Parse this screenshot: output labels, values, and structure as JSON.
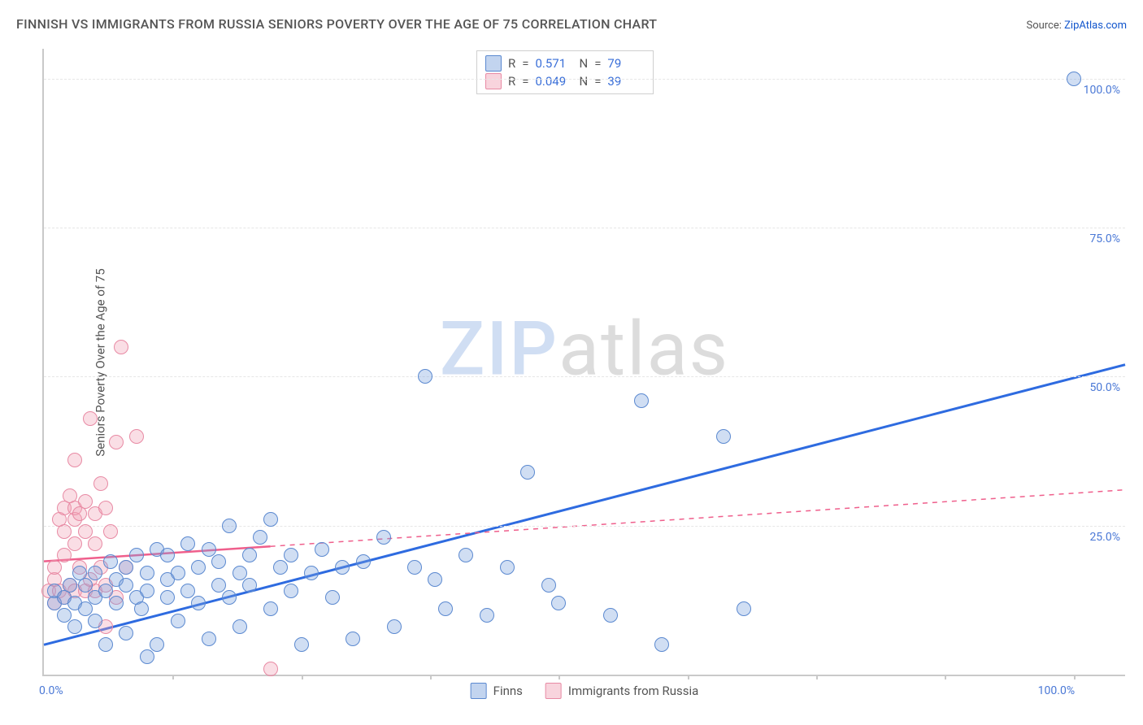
{
  "title": "FINNISH VS IMMIGRANTS FROM RUSSIA SENIORS POVERTY OVER THE AGE OF 75 CORRELATION CHART",
  "source_prefix": "Source: ",
  "source_name": "ZipAtlas.com",
  "ylabel": "Seniors Poverty Over the Age of 75",
  "watermark": {
    "zip": "ZIP",
    "atlas": "atlas"
  },
  "chart": {
    "type": "scatter",
    "xlim": [
      0,
      105
    ],
    "ylim": [
      0,
      105
    ],
    "yticks": [
      {
        "v": 25,
        "label": "25.0%"
      },
      {
        "v": 50,
        "label": "50.0%"
      },
      {
        "v": 75,
        "label": "75.0%"
      },
      {
        "v": 100,
        "label": "100.0%"
      }
    ],
    "xticks_labeled": [
      {
        "v": 0,
        "label": "0.0%"
      },
      {
        "v": 100,
        "label": "100.0%"
      }
    ],
    "xtick_step_minor": 12.5,
    "background_color": "#ffffff",
    "grid_color": "#e6e6e6",
    "axis_color": "#c9c9c9",
    "series": {
      "finns": {
        "label": "Finns",
        "color_fill": "rgba(120,160,220,0.35)",
        "color_stroke": "#5b89d0",
        "marker_size": 16,
        "R": "0.571",
        "N": "79",
        "trend": {
          "x1": 0,
          "y1": 5,
          "x2": 105,
          "y2": 52,
          "stroke": "#2e6be0",
          "width": 3,
          "dash_after_x": null
        },
        "points": [
          [
            1,
            12
          ],
          [
            1,
            14
          ],
          [
            2,
            10
          ],
          [
            2,
            13
          ],
          [
            2.5,
            15
          ],
          [
            3,
            8
          ],
          [
            3,
            12
          ],
          [
            3.5,
            17
          ],
          [
            4,
            11
          ],
          [
            4,
            15
          ],
          [
            5,
            9
          ],
          [
            5,
            13
          ],
          [
            5,
            17
          ],
          [
            6,
            5
          ],
          [
            6,
            14
          ],
          [
            6.5,
            19
          ],
          [
            7,
            12
          ],
          [
            7,
            16
          ],
          [
            8,
            7
          ],
          [
            8,
            15
          ],
          [
            8,
            18
          ],
          [
            9,
            13
          ],
          [
            9,
            20
          ],
          [
            9.5,
            11
          ],
          [
            10,
            3
          ],
          [
            10,
            14
          ],
          [
            10,
            17
          ],
          [
            11,
            21
          ],
          [
            11,
            5
          ],
          [
            12,
            13
          ],
          [
            12,
            16
          ],
          [
            12,
            20
          ],
          [
            13,
            9
          ],
          [
            13,
            17
          ],
          [
            14,
            14
          ],
          [
            14,
            22
          ],
          [
            15,
            12
          ],
          [
            15,
            18
          ],
          [
            16,
            21
          ],
          [
            16,
            6
          ],
          [
            17,
            15
          ],
          [
            17,
            19
          ],
          [
            18,
            13
          ],
          [
            18,
            25
          ],
          [
            19,
            17
          ],
          [
            19,
            8
          ],
          [
            20,
            15
          ],
          [
            20,
            20
          ],
          [
            21,
            23
          ],
          [
            22,
            11
          ],
          [
            22,
            26
          ],
          [
            23,
            18
          ],
          [
            24,
            14
          ],
          [
            24,
            20
          ],
          [
            25,
            5
          ],
          [
            26,
            17
          ],
          [
            27,
            21
          ],
          [
            28,
            13
          ],
          [
            29,
            18
          ],
          [
            30,
            6
          ],
          [
            31,
            19
          ],
          [
            33,
            23
          ],
          [
            34,
            8
          ],
          [
            36,
            18
          ],
          [
            37,
            50
          ],
          [
            38,
            16
          ],
          [
            39,
            11
          ],
          [
            41,
            20
          ],
          [
            43,
            10
          ],
          [
            45,
            18
          ],
          [
            47,
            34
          ],
          [
            49,
            15
          ],
          [
            50,
            12
          ],
          [
            55,
            10
          ],
          [
            58,
            46
          ],
          [
            60,
            5
          ],
          [
            66,
            40
          ],
          [
            68,
            11
          ],
          [
            100,
            100
          ]
        ]
      },
      "russia": {
        "label": "Immigrants from Russia",
        "color_fill": "rgba(240,160,180,0.35)",
        "color_stroke": "#e88aa4",
        "marker_size": 16,
        "R": "0.049",
        "N": "39",
        "trend": {
          "x1": 0,
          "y1": 19,
          "x2": 105,
          "y2": 31,
          "stroke": "#ef5f8c",
          "width": 2.5,
          "dash_after_x": 22
        },
        "points": [
          [
            0.5,
            14
          ],
          [
            1,
            12
          ],
          [
            1,
            16
          ],
          [
            1,
            18
          ],
          [
            1.5,
            14
          ],
          [
            1.5,
            26
          ],
          [
            2,
            13
          ],
          [
            2,
            20
          ],
          [
            2,
            24
          ],
          [
            2,
            28
          ],
          [
            2.5,
            15
          ],
          [
            2.5,
            30
          ],
          [
            3,
            14
          ],
          [
            3,
            22
          ],
          [
            3,
            26
          ],
          [
            3,
            28
          ],
          [
            3,
            36
          ],
          [
            3.5,
            18
          ],
          [
            3.5,
            27
          ],
          [
            4,
            14
          ],
          [
            4,
            24
          ],
          [
            4,
            29
          ],
          [
            4.5,
            16
          ],
          [
            4.5,
            43
          ],
          [
            5,
            14
          ],
          [
            5,
            22
          ],
          [
            5,
            27
          ],
          [
            5.5,
            18
          ],
          [
            5.5,
            32
          ],
          [
            6,
            8
          ],
          [
            6,
            15
          ],
          [
            6,
            28
          ],
          [
            6.5,
            24
          ],
          [
            7,
            13
          ],
          [
            7,
            39
          ],
          [
            7.5,
            55
          ],
          [
            8,
            18
          ],
          [
            9,
            40
          ],
          [
            22,
            1
          ]
        ]
      }
    }
  },
  "stat_legend": {
    "r_label": "R",
    "n_label": "N",
    "eq": "="
  },
  "bottom_legend": {
    "finns": "Finns",
    "russia": "Immigrants from Russia"
  }
}
